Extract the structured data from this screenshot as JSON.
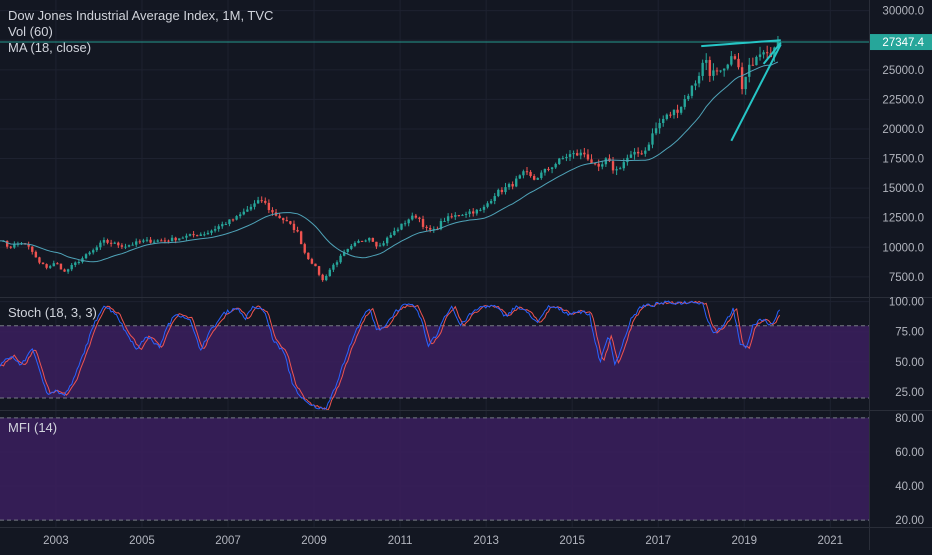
{
  "header": {
    "title": "Dow Jones Industrial Average Index, 1M, TVC",
    "vol_label": "Vol (60)",
    "ma_label": "MA (18, close)"
  },
  "colors": {
    "background": "#131722",
    "up": "#26a69a",
    "down": "#ef5350",
    "ma": "#4fa3b8",
    "trendline": "#26c6c6",
    "last_price_badge": "#26a69a",
    "stoch_k": "#2962ff",
    "stoch_d": "#ef5350",
    "band_fill": "#3b1f5e"
  },
  "chart_data": [
    {
      "type": "candlestick",
      "title": "Dow Jones Industrial Average Index, 1M, TVC",
      "x_ticks": [
        "2003",
        "2005",
        "2007",
        "2009",
        "2011",
        "2013",
        "2015",
        "2017",
        "2019",
        "2021"
      ],
      "x_range": [
        2001.7,
        2021.9
      ],
      "y_ticks": [
        7500,
        10000,
        12500,
        15000,
        17500,
        20000,
        22500,
        25000,
        27500,
        30000
      ],
      "y_tick_labels": [
        "7500.0",
        "10000.0",
        "12500.0",
        "15000.0",
        "17500.0",
        "20000.0",
        "22500.0",
        "25000.0",
        "27500.0",
        "30000.0"
      ],
      "y_range": [
        5800,
        30900
      ],
      "last_price": 27347.4,
      "last_price_label": "27347.4",
      "ma_period": 18,
      "close_anchors": [
        [
          2001.7,
          10700
        ],
        [
          2001.9,
          10000
        ],
        [
          2002.2,
          10400
        ],
        [
          2002.4,
          9900
        ],
        [
          2002.6,
          8700
        ],
        [
          2002.8,
          8300
        ],
        [
          2003.0,
          8700
        ],
        [
          2003.2,
          7900
        ],
        [
          2003.4,
          8500
        ],
        [
          2003.7,
          9300
        ],
        [
          2003.9,
          9800
        ],
        [
          2004.1,
          10500
        ],
        [
          2004.6,
          10100
        ],
        [
          2005.0,
          10500
        ],
        [
          2005.6,
          10600
        ],
        [
          2006.0,
          10900
        ],
        [
          2006.5,
          11200
        ],
        [
          2006.8,
          11800
        ],
        [
          2007.2,
          12500
        ],
        [
          2007.6,
          13600
        ],
        [
          2007.8,
          14000
        ],
        [
          2008.0,
          13000
        ],
        [
          2008.3,
          12300
        ],
        [
          2008.6,
          11400
        ],
        [
          2008.8,
          9400
        ],
        [
          2009.0,
          8500
        ],
        [
          2009.2,
          7200
        ],
        [
          2009.4,
          8300
        ],
        [
          2009.7,
          9500
        ],
        [
          2010.0,
          10400
        ],
        [
          2010.3,
          10900
        ],
        [
          2010.5,
          10000
        ],
        [
          2010.8,
          11100
        ],
        [
          2011.2,
          12400
        ],
        [
          2011.4,
          12700
        ],
        [
          2011.6,
          11500
        ],
        [
          2011.8,
          11400
        ],
        [
          2012.0,
          12300
        ],
        [
          2012.4,
          12800
        ],
        [
          2012.6,
          13000
        ],
        [
          2012.9,
          13100
        ],
        [
          2013.2,
          14500
        ],
        [
          2013.6,
          15300
        ],
        [
          2013.9,
          16300
        ],
        [
          2014.1,
          15700
        ],
        [
          2014.5,
          16800
        ],
        [
          2014.9,
          17800
        ],
        [
          2015.3,
          17900
        ],
        [
          2015.6,
          16500
        ],
        [
          2015.8,
          17400
        ],
        [
          2016.0,
          16400
        ],
        [
          2016.3,
          17600
        ],
        [
          2016.7,
          18200
        ],
        [
          2016.9,
          19800
        ],
        [
          2017.1,
          20800
        ],
        [
          2017.5,
          21800
        ],
        [
          2017.9,
          24200
        ],
        [
          2018.1,
          26100
        ],
        [
          2018.2,
          24800
        ],
        [
          2018.5,
          24600
        ],
        [
          2018.8,
          26400
        ],
        [
          2018.95,
          23300
        ],
        [
          2019.1,
          25000
        ],
        [
          2019.3,
          26500
        ],
        [
          2019.5,
          26900
        ],
        [
          2019.6,
          26400
        ],
        [
          2019.75,
          27000
        ],
        [
          2019.85,
          27347
        ]
      ],
      "trendlines": [
        {
          "name": "upper",
          "points": [
            [
              2018.0,
              27000
            ],
            [
              2019.85,
              27500
            ]
          ]
        },
        {
          "name": "rising",
          "points": [
            [
              2018.7,
              19000
            ],
            [
              2019.85,
              27150
            ]
          ]
        },
        {
          "name": "rising-inner",
          "points": [
            [
              2019.45,
              25500
            ],
            [
              2019.85,
              27300
            ]
          ]
        }
      ]
    },
    {
      "type": "line",
      "title": "Stoch (18, 3, 3)",
      "y_ticks": [
        25,
        50,
        75,
        100
      ],
      "y_tick_labels": [
        "25.00",
        "50.00",
        "75.00",
        "100.00"
      ],
      "y_range": [
        10,
        103
      ],
      "bands": [
        20,
        80
      ],
      "anchors": [
        [
          2001.7,
          47
        ],
        [
          2001.95,
          55
        ],
        [
          2002.2,
          47
        ],
        [
          2002.45,
          62
        ],
        [
          2002.6,
          44
        ],
        [
          2002.8,
          24
        ],
        [
          2003.0,
          26
        ],
        [
          2003.2,
          22
        ],
        [
          2003.4,
          34
        ],
        [
          2003.65,
          58
        ],
        [
          2003.9,
          82
        ],
        [
          2004.1,
          97
        ],
        [
          2004.4,
          90
        ],
        [
          2004.6,
          76
        ],
        [
          2004.9,
          60
        ],
        [
          2005.1,
          72
        ],
        [
          2005.4,
          62
        ],
        [
          2005.6,
          80
        ],
        [
          2005.8,
          90
        ],
        [
          2006.1,
          86
        ],
        [
          2006.35,
          60
        ],
        [
          2006.6,
          76
        ],
        [
          2006.9,
          90
        ],
        [
          2007.2,
          95
        ],
        [
          2007.4,
          86
        ],
        [
          2007.6,
          96
        ],
        [
          2007.85,
          92
        ],
        [
          2008.05,
          68
        ],
        [
          2008.3,
          58
        ],
        [
          2008.5,
          32
        ],
        [
          2008.7,
          20
        ],
        [
          2008.9,
          14
        ],
        [
          2009.1,
          12
        ],
        [
          2009.25,
          10
        ],
        [
          2009.5,
          30
        ],
        [
          2009.8,
          60
        ],
        [
          2010.1,
          86
        ],
        [
          2010.3,
          94
        ],
        [
          2010.45,
          76
        ],
        [
          2010.65,
          80
        ],
        [
          2010.9,
          92
        ],
        [
          2011.1,
          97
        ],
        [
          2011.35,
          96
        ],
        [
          2011.5,
          84
        ],
        [
          2011.65,
          64
        ],
        [
          2011.85,
          72
        ],
        [
          2012.0,
          86
        ],
        [
          2012.2,
          96
        ],
        [
          2012.4,
          80
        ],
        [
          2012.65,
          90
        ],
        [
          2012.9,
          96
        ],
        [
          2013.2,
          96
        ],
        [
          2013.45,
          88
        ],
        [
          2013.7,
          96
        ],
        [
          2014.0,
          90
        ],
        [
          2014.2,
          82
        ],
        [
          2014.45,
          96
        ],
        [
          2014.7,
          94
        ],
        [
          2014.9,
          90
        ],
        [
          2015.15,
          92
        ],
        [
          2015.4,
          90
        ],
        [
          2015.5,
          72
        ],
        [
          2015.65,
          50
        ],
        [
          2015.85,
          72
        ],
        [
          2016.0,
          48
        ],
        [
          2016.15,
          62
        ],
        [
          2016.35,
          84
        ],
        [
          2016.6,
          96
        ],
        [
          2016.85,
          97
        ],
        [
          2017.1,
          99
        ],
        [
          2017.5,
          99
        ],
        [
          2017.9,
          100
        ],
        [
          2018.05,
          98
        ],
        [
          2018.15,
          84
        ],
        [
          2018.3,
          74
        ],
        [
          2018.5,
          80
        ],
        [
          2018.75,
          94
        ],
        [
          2018.9,
          64
        ],
        [
          2019.05,
          62
        ],
        [
          2019.2,
          80
        ],
        [
          2019.45,
          86
        ],
        [
          2019.6,
          80
        ],
        [
          2019.75,
          88
        ],
        [
          2019.85,
          96
        ]
      ]
    },
    {
      "type": "line",
      "title": "MFI (14)",
      "y_ticks": [
        20,
        40,
        60,
        80
      ],
      "y_tick_labels": [
        "20.00",
        "40.00",
        "60.00",
        "80.00"
      ],
      "y_range": [
        16,
        84
      ],
      "bands": [
        20,
        80
      ]
    }
  ]
}
